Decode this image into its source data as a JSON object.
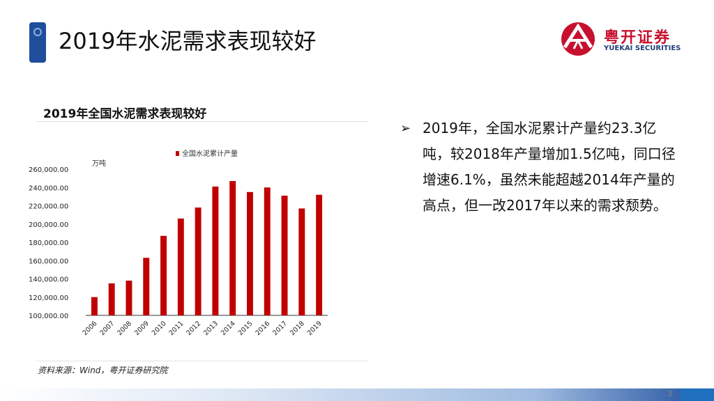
{
  "slide": {
    "title": "2019年水泥需求表现较好",
    "page_number": "3"
  },
  "logo": {
    "name_cn": "粤开证券",
    "name_en": "YUEKAI SECURITIES"
  },
  "colors": {
    "bar": "#c00000",
    "brand_blue": "#1f4e9c",
    "brand_red": "#c8102e"
  },
  "chart_data": {
    "type": "bar",
    "title": "2019年全国水泥需求表现较好",
    "unit": "万吨",
    "legend": "全国水泥累计产量",
    "categories": [
      "2006",
      "2007",
      "2008",
      "2009",
      "2010",
      "2011",
      "2012",
      "2013",
      "2014",
      "2015",
      "2016",
      "2017",
      "2018",
      "2019"
    ],
    "series": [
      {
        "name": "全国水泥累计产量",
        "values": [
          120000,
          135000,
          138000,
          163000,
          187000,
          206000,
          218000,
          241000,
          247000,
          235000,
          240000,
          231000,
          217000,
          232000
        ]
      }
    ],
    "ylim": [
      100000,
      260000
    ],
    "yticks": [
      "100,000.00",
      "120,000.00",
      "140,000.00",
      "160,000.00",
      "180,000.00",
      "200,000.00",
      "220,000.00",
      "240,000.00",
      "260,000.00"
    ],
    "grid": false,
    "legend_position": "top"
  },
  "source": "资料来源：Wind，粤开证券研究院",
  "bullet": {
    "arrow": "➢",
    "text": "2019年，全国水泥累计产量约23.3亿吨，较2018年产量增加1.5亿吨，同口径增速6.1%，虽然未能超越2014年产量的高点，但一改2017年以来的需求颓势。"
  }
}
